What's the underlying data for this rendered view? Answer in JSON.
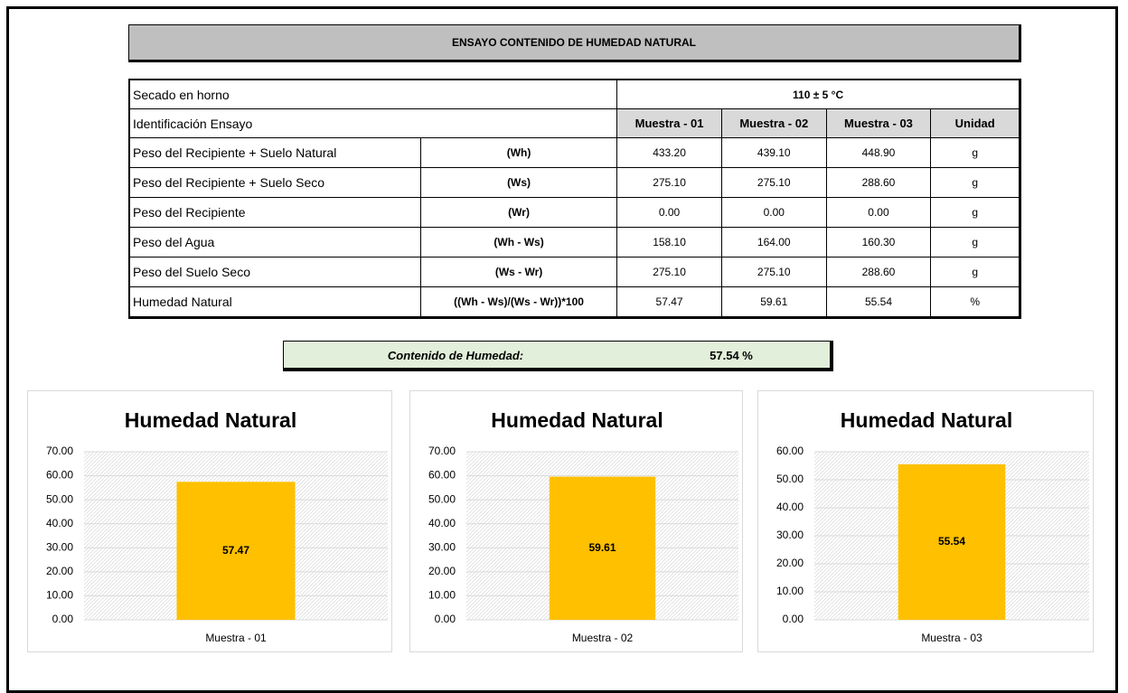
{
  "header": {
    "title": "ENSAYO CONTENIDO DE HUMEDAD NATURAL"
  },
  "table": {
    "rows": [
      [
        "Secado en horno",
        "110 ± 5 °C"
      ],
      [
        "Identificación Ensayo",
        "Muestra - 01",
        "Muestra - 02",
        "Muestra - 03",
        "Unidad"
      ],
      [
        "Peso del Recipiente + Suelo Natural",
        "(Wh)",
        "433.20",
        "439.10",
        "448.90",
        "g"
      ],
      [
        "Peso del Recipiente + Suelo Seco",
        "(Ws)",
        "275.10",
        "275.10",
        "288.60",
        "g"
      ],
      [
        "Peso del Recipiente",
        "(Wr)",
        "0.00",
        "0.00",
        "0.00",
        "g"
      ],
      [
        "Peso del Agua",
        "(Wh - Ws)",
        "158.10",
        "164.00",
        "160.30",
        "g"
      ],
      [
        "Peso del Suelo Seco",
        "(Ws - Wr)",
        "275.10",
        "275.10",
        "288.60",
        "g"
      ],
      [
        "Humedad Natural",
        "((Wh - Ws)/(Ws - Wr))*100",
        "57.47",
        "59.61",
        "55.54",
        "%"
      ]
    ]
  },
  "summary": {
    "label": "Contenido de Humedad:",
    "value": "57.54 %"
  },
  "chart_data": [
    {
      "type": "bar",
      "title": "Humedad Natural",
      "categories": [
        "Muestra - 01"
      ],
      "values": [
        57.47
      ],
      "color": "#ffc000",
      "ylim": [
        0,
        70
      ],
      "grid": true,
      "yticks": [
        {
          "value": 0,
          "label": "0.00"
        },
        {
          "value": 10,
          "label": "10.00"
        },
        {
          "value": 20,
          "label": "20.00"
        },
        {
          "value": 30,
          "label": "30.00"
        },
        {
          "value": 40,
          "label": "40.00"
        },
        {
          "value": 50,
          "label": "50.00"
        },
        {
          "value": 60,
          "label": "60.00"
        },
        {
          "value": 70,
          "label": "70.00"
        }
      ]
    },
    {
      "type": "bar",
      "title": "Humedad Natural",
      "categories": [
        "Muestra - 02"
      ],
      "values": [
        59.61
      ],
      "color": "#ffc000",
      "ylim": [
        0,
        70
      ],
      "grid": true,
      "yticks": [
        {
          "value": 0,
          "label": "0.00"
        },
        {
          "value": 10,
          "label": "10.00"
        },
        {
          "value": 20,
          "label": "20.00"
        },
        {
          "value": 30,
          "label": "30.00"
        },
        {
          "value": 40,
          "label": "40.00"
        },
        {
          "value": 50,
          "label": "50.00"
        },
        {
          "value": 60,
          "label": "60.00"
        },
        {
          "value": 70,
          "label": "70.00"
        }
      ]
    },
    {
      "type": "bar",
      "title": "Humedad Natural",
      "categories": [
        "Muestra - 03"
      ],
      "values": [
        55.54
      ],
      "color": "#ffc000",
      "ylim": [
        0,
        60
      ],
      "grid": true,
      "yticks": [
        {
          "value": 0,
          "label": "0.00"
        },
        {
          "value": 10,
          "label": "10.00"
        },
        {
          "value": 20,
          "label": "20.00"
        },
        {
          "value": 30,
          "label": "30.00"
        },
        {
          "value": 40,
          "label": "40.00"
        },
        {
          "value": 50,
          "label": "50.00"
        },
        {
          "value": 60,
          "label": "60.00"
        }
      ]
    }
  ]
}
